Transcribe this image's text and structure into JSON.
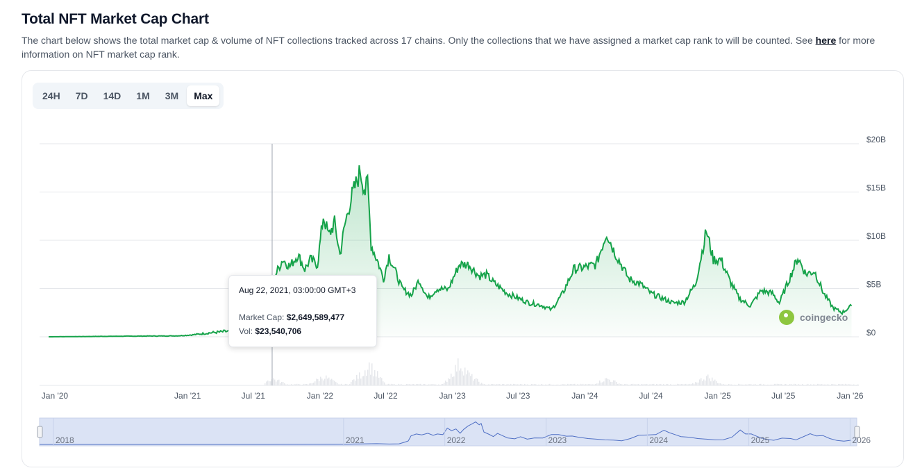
{
  "header": {
    "title": "Total NFT Market Cap Chart",
    "description": "The chart below shows the total market cap & volume of NFT collections tracked across 17 chains. Only the collections that we have assigned a market cap rank to will be counted. See ",
    "link_text": "here",
    "description_end": " for more information on NFT market cap rank."
  },
  "range_buttons": [
    "24H",
    "7D",
    "14D",
    "1M",
    "3M",
    "Max"
  ],
  "active_range": "Max",
  "tooltip": {
    "date": "Aug 22, 2021, 03:00:00 GMT+3",
    "market_cap_label": "Market Cap:",
    "market_cap_value": "$2,649,589,477",
    "vol_label": "Vol:",
    "vol_value": "$23,540,706"
  },
  "watermark": "coingecko",
  "colors": {
    "line": "#16a34a",
    "area": "#16a34a",
    "navigator_line": "#4f6fc4",
    "navigator_fill": "#dbe3f5"
  },
  "chart_data": {
    "type": "area",
    "series": [
      {
        "name": "Market Cap",
        "unit": "USD billions",
        "points": [
          [
            "2019-12-15",
            0.0
          ],
          [
            "2020-06-01",
            0.05
          ],
          [
            "2020-12-01",
            0.1
          ],
          [
            "2021-01-15",
            0.2
          ],
          [
            "2021-03-01",
            0.4
          ],
          [
            "2021-05-01",
            0.6
          ],
          [
            "2021-06-15",
            0.3
          ],
          [
            "2021-07-20",
            0.5
          ],
          [
            "2021-08-10",
            1.8
          ],
          [
            "2021-08-22",
            2.65
          ],
          [
            "2021-09-01",
            6.5
          ],
          [
            "2021-09-20",
            8.0
          ],
          [
            "2021-10-10",
            7.3
          ],
          [
            "2021-11-01",
            8.5
          ],
          [
            "2021-11-20",
            7.0
          ],
          [
            "2021-12-05",
            8.0
          ],
          [
            "2021-12-25",
            7.5
          ],
          [
            "2022-01-10",
            12.5
          ],
          [
            "2022-01-25",
            10.5
          ],
          [
            "2022-02-10",
            11.8
          ],
          [
            "2022-02-25",
            8.5
          ],
          [
            "2022-03-10",
            11.5
          ],
          [
            "2022-03-25",
            14.0
          ],
          [
            "2022-04-10",
            15.8
          ],
          [
            "2022-04-22",
            17.2
          ],
          [
            "2022-05-05",
            15.0
          ],
          [
            "2022-05-12",
            16.0
          ],
          [
            "2022-05-22",
            9.5
          ],
          [
            "2022-06-10",
            7.7
          ],
          [
            "2022-06-25",
            6.0
          ],
          [
            "2022-07-10",
            8.4
          ],
          [
            "2022-07-25",
            7.0
          ],
          [
            "2022-08-15",
            5.0
          ],
          [
            "2022-09-10",
            4.3
          ],
          [
            "2022-10-01",
            5.9
          ],
          [
            "2022-10-25",
            4.0
          ],
          [
            "2022-11-20",
            5.0
          ],
          [
            "2022-12-20",
            4.9
          ],
          [
            "2023-01-20",
            7.5
          ],
          [
            "2023-02-15",
            7.5
          ],
          [
            "2023-03-15",
            6.3
          ],
          [
            "2023-04-05",
            6.4
          ],
          [
            "2023-04-25",
            5.6
          ],
          [
            "2023-06-01",
            4.5
          ],
          [
            "2023-07-01",
            4.0
          ],
          [
            "2023-08-01",
            3.5
          ],
          [
            "2023-09-01",
            3.3
          ],
          [
            "2023-10-01",
            2.8
          ],
          [
            "2023-11-01",
            4.5
          ],
          [
            "2023-12-01",
            7.0
          ],
          [
            "2024-01-01",
            7.2
          ],
          [
            "2024-02-01",
            7.5
          ],
          [
            "2024-03-01",
            10.8
          ],
          [
            "2024-03-20",
            9.0
          ],
          [
            "2024-04-10",
            7.5
          ],
          [
            "2024-05-01",
            6.0
          ],
          [
            "2024-06-01",
            5.5
          ],
          [
            "2024-07-01",
            4.5
          ],
          [
            "2024-08-01",
            4.0
          ],
          [
            "2024-09-01",
            3.5
          ],
          [
            "2024-10-01",
            3.6
          ],
          [
            "2024-11-01",
            5.5
          ],
          [
            "2024-12-01",
            11.0
          ],
          [
            "2024-12-20",
            8.0
          ],
          [
            "2025-01-10",
            8.0
          ],
          [
            "2025-02-01",
            6.0
          ],
          [
            "2025-03-01",
            4.0
          ],
          [
            "2025-04-01",
            3.2
          ],
          [
            "2025-05-01",
            4.8
          ],
          [
            "2025-06-01",
            4.5
          ],
          [
            "2025-06-20",
            3.5
          ],
          [
            "2025-07-10",
            5.3
          ],
          [
            "2025-08-10",
            8.2
          ],
          [
            "2025-09-01",
            6.5
          ],
          [
            "2025-09-25",
            6.8
          ],
          [
            "2025-10-20",
            4.5
          ],
          [
            "2025-11-15",
            3.0
          ],
          [
            "2025-12-10",
            2.5
          ],
          [
            "2026-01-05",
            3.2
          ]
        ]
      },
      {
        "name": "Vol",
        "unit": "relative",
        "points": [
          [
            "2021-08-22",
            0.3
          ],
          [
            "2022-01-10",
            0.4
          ],
          [
            "2022-05-01",
            0.6
          ],
          [
            "2022-05-15",
            0.9
          ],
          [
            "2023-01-20",
            1.0
          ],
          [
            "2023-02-10",
            0.5
          ],
          [
            "2024-03-01",
            0.3
          ],
          [
            "2024-12-01",
            0.4
          ]
        ]
      }
    ],
    "x_ticks": [
      "Jan '20",
      "Jan '21",
      "Jul '21",
      "Jan '22",
      "Jul '22",
      "Jan '23",
      "Jul '23",
      "Jan '24",
      "Jul '24",
      "Jan '25",
      "Jul '25",
      "Jan '26"
    ],
    "y_ticks": [
      "$0",
      "$5B",
      "$10B",
      "$15B",
      "$20B"
    ],
    "ylim": [
      0,
      20
    ],
    "grid": true,
    "navigator_labels": [
      "2018",
      "2021",
      "2022",
      "2023",
      "2024",
      "2025",
      "2026"
    ]
  }
}
